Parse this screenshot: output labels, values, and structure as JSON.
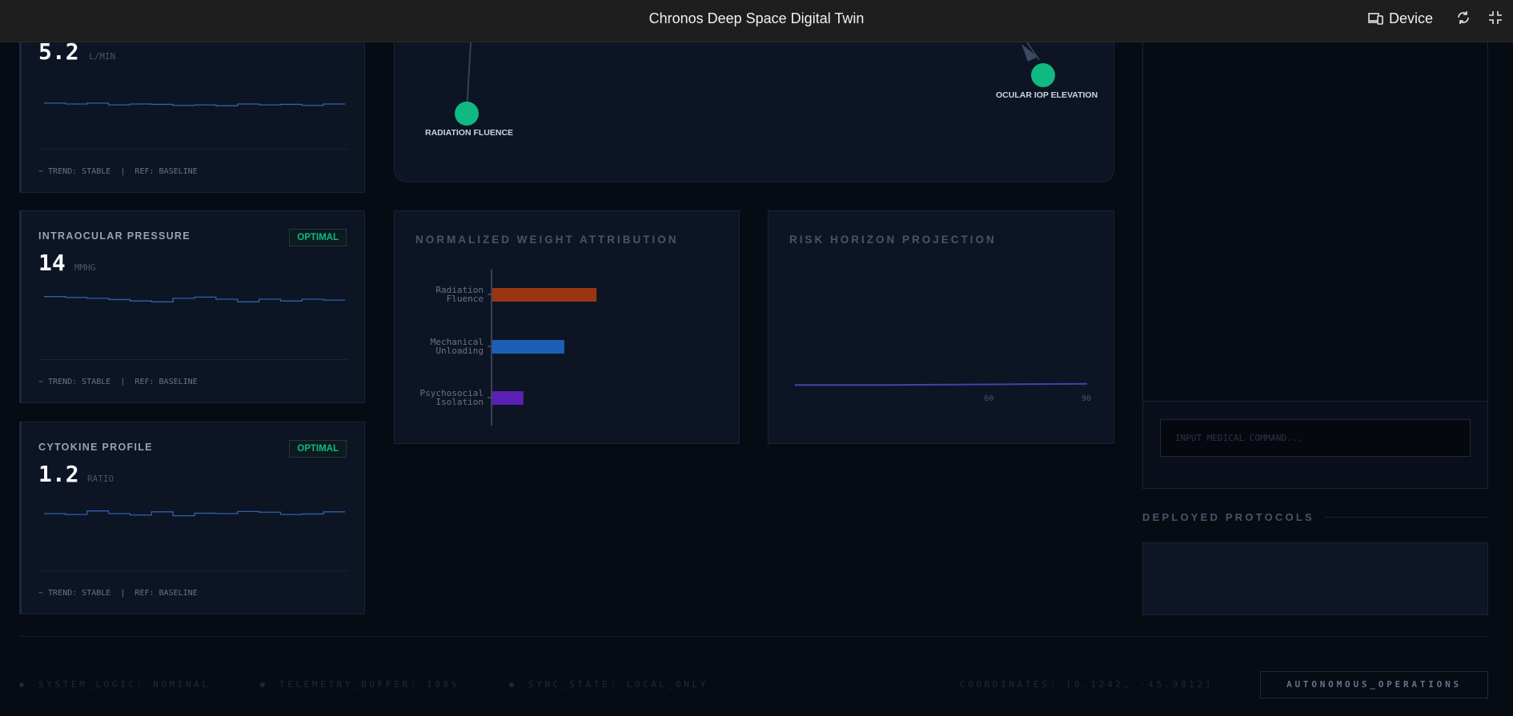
{
  "header": {
    "title": "Chronos Deep Space Digital Twin",
    "device_label": "Device"
  },
  "metrics": [
    {
      "label": "",
      "value": "5.2",
      "unit": "L/MIN",
      "badge": "",
      "trend": "~ TRENDː STABLE",
      "ref": "REF: BASELINE",
      "spark_y": [
        0.55,
        0.5,
        0.55,
        0.45,
        0.5,
        0.48,
        0.42,
        0.45,
        0.4,
        0.5,
        0.45,
        0.48,
        0.42,
        0.5
      ]
    },
    {
      "label": "INTRAOCULAR PRESSURE",
      "value": "14",
      "unit": "MMHG",
      "badge": "OPTIMAL",
      "trend": "~ TRENDː STABLE",
      "ref": "REF: BASELINE",
      "spark_y": [
        0.65,
        0.6,
        0.55,
        0.48,
        0.4,
        0.35,
        0.55,
        0.62,
        0.5,
        0.35,
        0.5,
        0.4,
        0.5,
        0.45
      ]
    },
    {
      "label": "CYTOKINE PROFILE",
      "value": "1.2",
      "unit": "RATIO",
      "badge": "OPTIMAL",
      "trend": "~ TRENDː STABLE",
      "ref": "REF: BASELINE",
      "spark_y": [
        0.5,
        0.45,
        0.65,
        0.5,
        0.42,
        0.6,
        0.38,
        0.52,
        0.5,
        0.62,
        0.58,
        0.45,
        0.48,
        0.6
      ]
    }
  ],
  "network": {
    "nodes": [
      {
        "label": "RADIATION FLUENCE"
      },
      {
        "label": "OCULAR IOP ELEVATION"
      }
    ]
  },
  "weight_chart": {
    "title": "NORMALIZED WEIGHT ATTRIBUTION",
    "chart_data": {
      "type": "bar",
      "orientation": "horizontal",
      "categories": [
        "Radiation Fluence",
        "Mechanical Unloading",
        "Psychosocial Isolation"
      ],
      "values": [
        0.42,
        0.29,
        0.125
      ],
      "colors": [
        "#9a3412",
        "#1d5fb5",
        "#5b21b6"
      ]
    }
  },
  "risk_chart": {
    "title": "RISK HORIZON PROJECTION",
    "chart_data": {
      "type": "line",
      "x": [
        0,
        30,
        60,
        90
      ],
      "y": [
        0.02,
        0.02,
        0.025,
        0.03
      ],
      "xticks": [
        "60",
        "90"
      ],
      "color": "#4c3fa8"
    }
  },
  "command": {
    "placeholder": "INPUT MEDICAL COMMAND..."
  },
  "protocols": {
    "title": "DEPLOYED PROTOCOLS"
  },
  "footer": {
    "system_logic": "SYSTEM_LOGIC: NOMINAL",
    "telemetry": "TELEMETRY_BUFFER: 100%",
    "sync": "SYNC_STATE: LOCAL_ONLY",
    "coordinates": "COORDINATES: [0.1242, -45.9812]",
    "mode": "AUTONOMOUS_OPERATIONS"
  }
}
